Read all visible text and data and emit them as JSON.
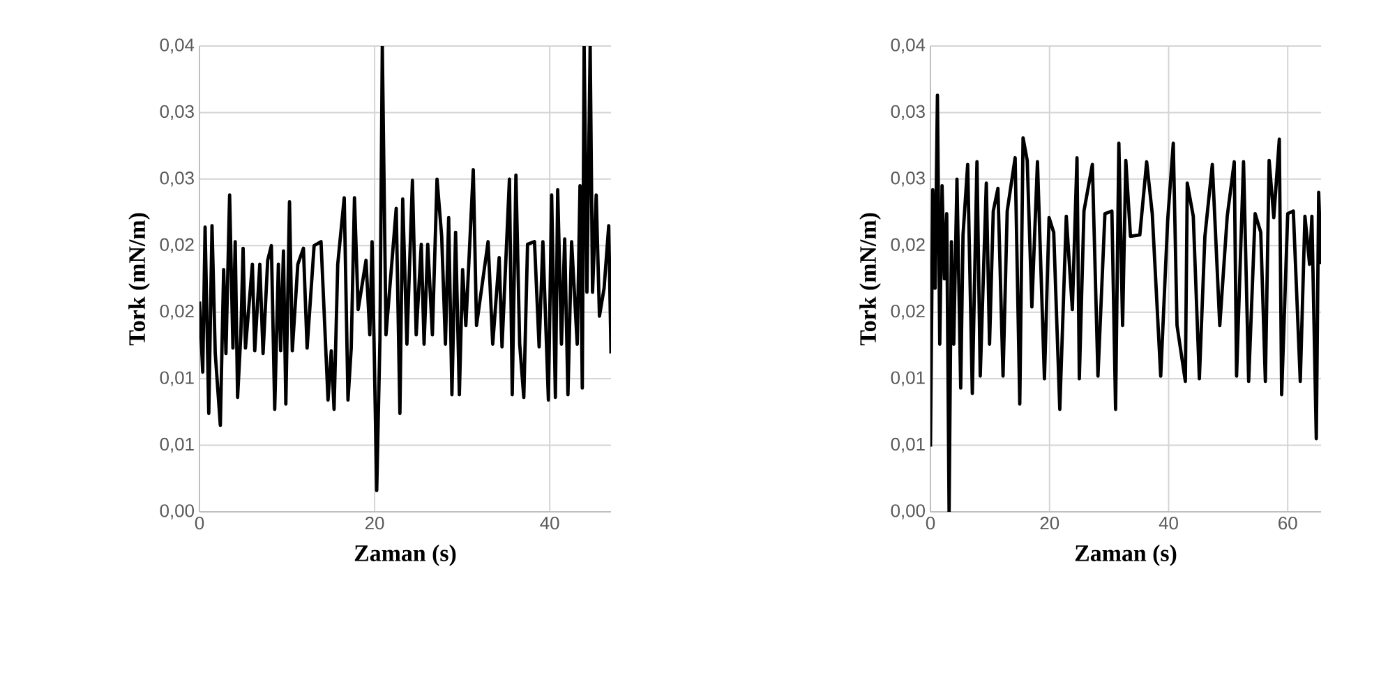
{
  "chart_data": [
    {
      "type": "line",
      "xlabel": "Zaman (s)",
      "ylabel": "Tork (mN/m)",
      "xlim": [
        0,
        47
      ],
      "xticks": [
        0,
        20,
        40
      ],
      "ylim": [
        0,
        0.035
      ],
      "yticks": [
        {
          "value": 0,
          "label": "0,00"
        },
        {
          "value": 0.005,
          "label": "0,01"
        },
        {
          "value": 0.01,
          "label": "0,01"
        },
        {
          "value": 0.015,
          "label": "0,02"
        },
        {
          "value": 0.02,
          "label": "0,02"
        },
        {
          "value": 0.025,
          "label": "0,03"
        },
        {
          "value": 0.03,
          "label": "0,03"
        },
        {
          "value": 0.035,
          "label": "0,04"
        }
      ],
      "grid": true,
      "series": [
        {
          "color": "#000000",
          "x": [
            0,
            0.37,
            0.64,
            1.06,
            1.43,
            1.8,
            2.38,
            2.76,
            3.02,
            3.44,
            3.82,
            4.08,
            4.35,
            4.72,
            4.98,
            5.25,
            6.04,
            6.31,
            6.89,
            7.26,
            7.79,
            8.21,
            8.59,
            9.01,
            9.27,
            9.59,
            9.86,
            10.28,
            10.6,
            11.23,
            11.87,
            12.29,
            13.09,
            13.88,
            14.68,
            15.05,
            15.37,
            15.79,
            16.53,
            16.96,
            17.33,
            17.7,
            18.12,
            19.02,
            19.45,
            19.71,
            19.93,
            20.24,
            20.61,
            20.88,
            21.3,
            22.47,
            22.89,
            23.21,
            23.69,
            24.32,
            24.75,
            25.33,
            25.65,
            26.07,
            26.6,
            27.13,
            27.66,
            28.09,
            28.46,
            28.83,
            29.25,
            29.68,
            30.05,
            30.42,
            31.27,
            31.64,
            32.96,
            33.49,
            34.23,
            34.55,
            35.4,
            35.72,
            36.14,
            36.57,
            37.04,
            37.47,
            38.26,
            38.79,
            39.22,
            39.85,
            40.22,
            40.65,
            40.91,
            41.34,
            41.71,
            42.08,
            42.5,
            43.14,
            43.46,
            43.72,
            43.93,
            44.25,
            44.62,
            44.89,
            45.31,
            45.68,
            46.21,
            46.74,
            47
          ],
          "values": [
            0.0158,
            0.0105,
            0.0214,
            0.0074,
            0.0215,
            0.0119,
            0.0065,
            0.0182,
            0.0119,
            0.0238,
            0.0123,
            0.0203,
            0.0086,
            0.0133,
            0.0198,
            0.0123,
            0.0186,
            0.0121,
            0.0186,
            0.0119,
            0.0189,
            0.02,
            0.0077,
            0.0186,
            0.0121,
            0.0196,
            0.0081,
            0.0233,
            0.0121,
            0.0186,
            0.0198,
            0.0123,
            0.02,
            0.0203,
            0.0084,
            0.0121,
            0.0077,
            0.0186,
            0.0236,
            0.0084,
            0.0123,
            0.0236,
            0.0152,
            0.0189,
            0.0133,
            0.0203,
            0.013,
            0.0016,
            0.013,
            0.035,
            0.0133,
            0.0228,
            0.0074,
            0.0235,
            0.0126,
            0.0249,
            0.0133,
            0.0201,
            0.0126,
            0.0201,
            0.0133,
            0.025,
            0.0207,
            0.0126,
            0.0221,
            0.0088,
            0.021,
            0.0088,
            0.0182,
            0.014,
            0.0257,
            0.014,
            0.0203,
            0.0126,
            0.0191,
            0.0124,
            0.025,
            0.0088,
            0.0253,
            0.0126,
            0.0086,
            0.0201,
            0.0203,
            0.0124,
            0.0203,
            0.0084,
            0.0238,
            0.0086,
            0.0242,
            0.0126,
            0.0205,
            0.0088,
            0.0203,
            0.0126,
            0.0245,
            0.0093,
            0.035,
            0.0165,
            0.035,
            0.0165,
            0.0238,
            0.0147,
            0.0168,
            0.0215,
            0.0119
          ]
        }
      ]
    },
    {
      "type": "line",
      "xlabel": "Zaman (s)",
      "ylabel": "Tork (mN/m)",
      "xlim": [
        0,
        65.6
      ],
      "xticks": [
        0,
        20,
        40,
        60
      ],
      "ylim": [
        0,
        0.035
      ],
      "yticks": [
        {
          "value": 0,
          "label": "0,00"
        },
        {
          "value": 0.005,
          "label": "0,01"
        },
        {
          "value": 0.01,
          "label": "0,01"
        },
        {
          "value": 0.015,
          "label": "0,02"
        },
        {
          "value": 0.02,
          "label": "0,02"
        },
        {
          "value": 0.025,
          "label": "0,03"
        },
        {
          "value": 0.03,
          "label": "0,03"
        },
        {
          "value": 0.035,
          "label": "0,04"
        }
      ],
      "grid": true,
      "series": [
        {
          "color": "#000000",
          "x": [
            0,
            0.39,
            0.78,
            1.17,
            1.56,
            1.95,
            2.34,
            2.73,
            3.13,
            3.52,
            3.91,
            4.45,
            5.08,
            5.47,
            6.25,
            7.03,
            7.81,
            8.36,
            9.38,
            9.92,
            10.55,
            11.33,
            12.19,
            12.89,
            14.22,
            15.0,
            15.55,
            16.25,
            17.03,
            17.97,
            19.14,
            19.92,
            20.7,
            21.72,
            22.81,
            23.83,
            24.61,
            25.0,
            25.78,
            27.19,
            28.13,
            29.3,
            30.47,
            31.09,
            31.64,
            32.27,
            32.81,
            33.59,
            35.16,
            36.31,
            37.25,
            38.67,
            39.84,
            40.78,
            41.41,
            42.81,
            43.13,
            44.14,
            45.16,
            46.09,
            47.34,
            48.59,
            49.84,
            51.02,
            51.41,
            52.58,
            53.44,
            54.53,
            55.47,
            56.25,
            56.88,
            57.66,
            58.59,
            58.98,
            60.0,
            60.94,
            62.11,
            62.89,
            63.67,
            64.06,
            64.8,
            65.2,
            65.6
          ],
          "values": [
            0.0049,
            0.0242,
            0.0168,
            0.0313,
            0.0126,
            0.0245,
            0.0175,
            0.0224,
            0.0,
            0.0203,
            0.0126,
            0.025,
            0.0093,
            0.0208,
            0.0261,
            0.0089,
            0.0263,
            0.0102,
            0.0247,
            0.0126,
            0.0226,
            0.0243,
            0.0102,
            0.0226,
            0.0266,
            0.0081,
            0.0281,
            0.0264,
            0.0154,
            0.0263,
            0.01,
            0.0221,
            0.021,
            0.0077,
            0.0222,
            0.0152,
            0.0266,
            0.01,
            0.0226,
            0.0261,
            0.0102,
            0.0224,
            0.0226,
            0.0077,
            0.0277,
            0.014,
            0.0264,
            0.0207,
            0.0208,
            0.0263,
            0.0224,
            0.0102,
            0.0219,
            0.0277,
            0.014,
            0.0098,
            0.0247,
            0.0222,
            0.01,
            0.0207,
            0.0261,
            0.014,
            0.0222,
            0.0263,
            0.0102,
            0.0263,
            0.0098,
            0.0224,
            0.021,
            0.0098,
            0.0264,
            0.0221,
            0.028,
            0.0088,
            0.0224,
            0.0226,
            0.0098,
            0.0222,
            0.0186,
            0.0222,
            0.0055,
            0.024,
            0.0186
          ]
        }
      ]
    }
  ]
}
